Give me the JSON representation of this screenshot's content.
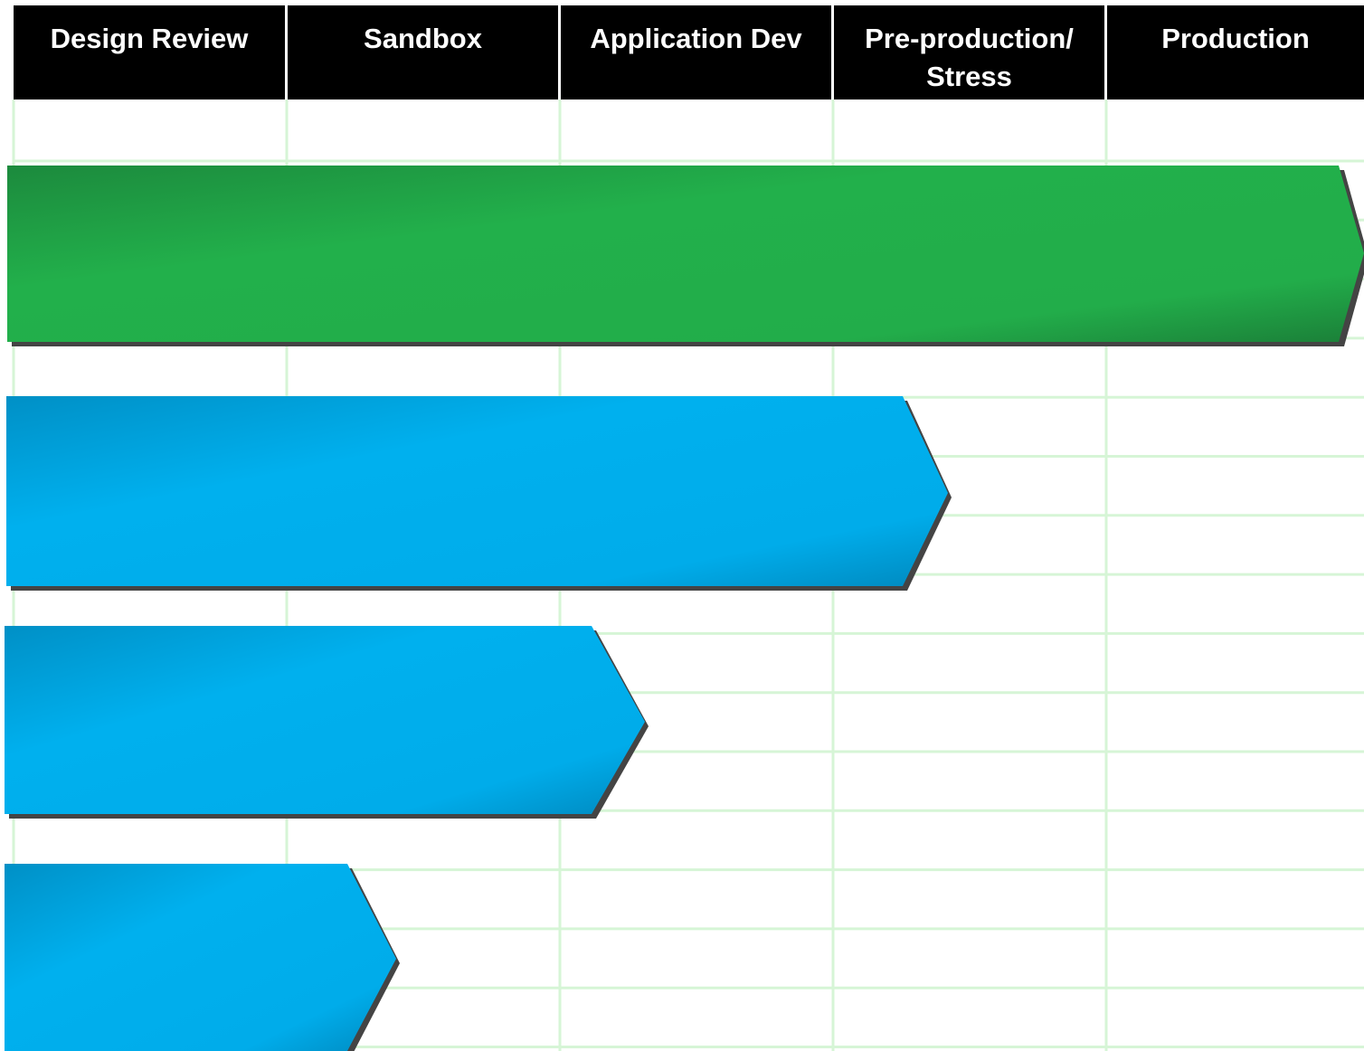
{
  "header": {
    "columns": [
      "Design Review",
      "Sandbox",
      "Application Dev",
      "Pre-production/ Stress",
      "Production"
    ]
  }
}
